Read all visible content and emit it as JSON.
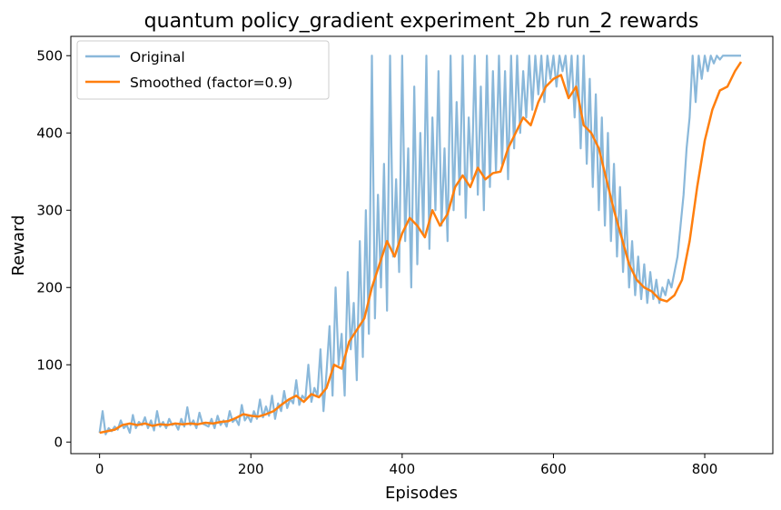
{
  "chart_data": {
    "type": "line",
    "title": "quantum policy_gradient experiment_2b run_2 rewards",
    "xlabel": "Episodes",
    "ylabel": "Reward",
    "xlim": [
      -38,
      890
    ],
    "ylim": [
      -15,
      525
    ],
    "xticks": [
      0,
      200,
      400,
      600,
      800
    ],
    "yticks": [
      0,
      100,
      200,
      300,
      400,
      500
    ],
    "grid": false,
    "legend_position": "top-left",
    "colors": {
      "original": "#8ab8da",
      "smoothed": "#ff7f0e"
    },
    "series": [
      {
        "name": "Original",
        "key": "original",
        "x": [
          0,
          4,
          8,
          12,
          16,
          20,
          24,
          28,
          32,
          36,
          40,
          44,
          48,
          52,
          56,
          60,
          64,
          68,
          72,
          76,
          80,
          84,
          88,
          92,
          96,
          100,
          104,
          108,
          112,
          116,
          120,
          124,
          128,
          132,
          136,
          140,
          144,
          148,
          152,
          156,
          160,
          164,
          168,
          172,
          176,
          180,
          184,
          188,
          192,
          196,
          200,
          204,
          208,
          212,
          216,
          220,
          224,
          228,
          232,
          236,
          240,
          244,
          248,
          252,
          256,
          260,
          264,
          268,
          272,
          276,
          280,
          284,
          288,
          292,
          296,
          300,
          304,
          308,
          312,
          316,
          320,
          324,
          328,
          332,
          336,
          340,
          344,
          348,
          352,
          356,
          360,
          364,
          368,
          372,
          376,
          380,
          384,
          388,
          392,
          396,
          400,
          404,
          408,
          412,
          416,
          420,
          424,
          428,
          432,
          436,
          440,
          444,
          448,
          452,
          456,
          460,
          464,
          468,
          472,
          476,
          480,
          484,
          488,
          492,
          496,
          500,
          504,
          508,
          512,
          516,
          520,
          524,
          528,
          532,
          536,
          540,
          544,
          548,
          552,
          556,
          560,
          564,
          568,
          572,
          576,
          580,
          584,
          588,
          592,
          596,
          600,
          604,
          608,
          612,
          616,
          620,
          624,
          628,
          632,
          636,
          640,
          644,
          648,
          652,
          656,
          660,
          664,
          668,
          672,
          676,
          680,
          684,
          688,
          692,
          696,
          700,
          704,
          708,
          712,
          716,
          720,
          724,
          728,
          732,
          736,
          740,
          744,
          748,
          752,
          756,
          760,
          764,
          768,
          772,
          776,
          780,
          784,
          788,
          792,
          796,
          800,
          804,
          808,
          812,
          816,
          820,
          824,
          828,
          832,
          836,
          840,
          844,
          848
        ],
        "y": [
          12,
          40,
          10,
          18,
          14,
          20,
          16,
          28,
          18,
          22,
          12,
          35,
          18,
          26,
          22,
          32,
          18,
          28,
          15,
          40,
          20,
          26,
          18,
          30,
          22,
          24,
          16,
          30,
          20,
          45,
          22,
          28,
          18,
          38,
          24,
          22,
          20,
          30,
          18,
          34,
          22,
          28,
          20,
          40,
          26,
          30,
          22,
          48,
          28,
          34,
          26,
          40,
          30,
          55,
          32,
          46,
          34,
          60,
          30,
          50,
          40,
          66,
          44,
          56,
          50,
          80,
          48,
          60,
          55,
          100,
          52,
          70,
          60,
          120,
          40,
          90,
          150,
          60,
          200,
          100,
          140,
          60,
          220,
          120,
          180,
          80,
          260,
          110,
          300,
          140,
          500,
          160,
          320,
          200,
          360,
          170,
          500,
          240,
          340,
          220,
          500,
          260,
          380,
          200,
          460,
          230,
          400,
          270,
          500,
          250,
          420,
          300,
          480,
          280,
          380,
          260,
          500,
          300,
          440,
          320,
          500,
          290,
          420,
          340,
          500,
          320,
          460,
          300,
          500,
          330,
          480,
          350,
          500,
          360,
          480,
          340,
          500,
          380,
          500,
          400,
          480,
          420,
          500,
          430,
          500,
          450,
          500,
          440,
          500,
          470,
          500,
          460,
          500,
          480,
          500,
          450,
          500,
          420,
          500,
          380,
          500,
          360,
          470,
          330,
          450,
          300,
          420,
          280,
          400,
          260,
          360,
          240,
          330,
          220,
          300,
          200,
          260,
          190,
          240,
          185,
          230,
          180,
          220,
          185,
          210,
          180,
          200,
          190,
          210,
          200,
          220,
          240,
          280,
          320,
          380,
          420,
          500,
          440,
          500,
          470,
          500,
          480,
          500,
          490,
          500,
          495,
          500,
          500,
          500,
          500,
          500,
          500,
          500
        ]
      },
      {
        "name": "Smoothed (factor=0.9)",
        "key": "smoothed",
        "x": [
          0,
          10,
          20,
          30,
          40,
          50,
          60,
          70,
          80,
          90,
          100,
          110,
          120,
          130,
          140,
          150,
          160,
          170,
          180,
          190,
          200,
          210,
          220,
          230,
          240,
          250,
          260,
          270,
          280,
          290,
          300,
          310,
          320,
          330,
          340,
          350,
          360,
          370,
          380,
          390,
          400,
          410,
          420,
          430,
          440,
          450,
          460,
          470,
          480,
          490,
          500,
          510,
          520,
          530,
          540,
          550,
          560,
          570,
          580,
          590,
          600,
          610,
          620,
          630,
          640,
          650,
          660,
          670,
          680,
          690,
          700,
          710,
          720,
          730,
          740,
          750,
          760,
          770,
          780,
          790,
          800,
          810,
          820,
          830,
          840,
          848
        ],
        "y": [
          12,
          14,
          16,
          22,
          24,
          22,
          24,
          21,
          23,
          22,
          24,
          23,
          24,
          23,
          25,
          24,
          26,
          27,
          31,
          36,
          34,
          33,
          36,
          40,
          48,
          55,
          60,
          52,
          62,
          58,
          70,
          100,
          95,
          130,
          145,
          160,
          200,
          230,
          260,
          240,
          270,
          290,
          280,
          265,
          300,
          280,
          295,
          330,
          345,
          330,
          355,
          340,
          348,
          350,
          380,
          400,
          420,
          410,
          440,
          460,
          470,
          475,
          445,
          460,
          410,
          400,
          380,
          340,
          300,
          265,
          230,
          210,
          200,
          195,
          185,
          182,
          190,
          210,
          260,
          330,
          390,
          430,
          455,
          460,
          480,
          492
        ]
      }
    ]
  }
}
